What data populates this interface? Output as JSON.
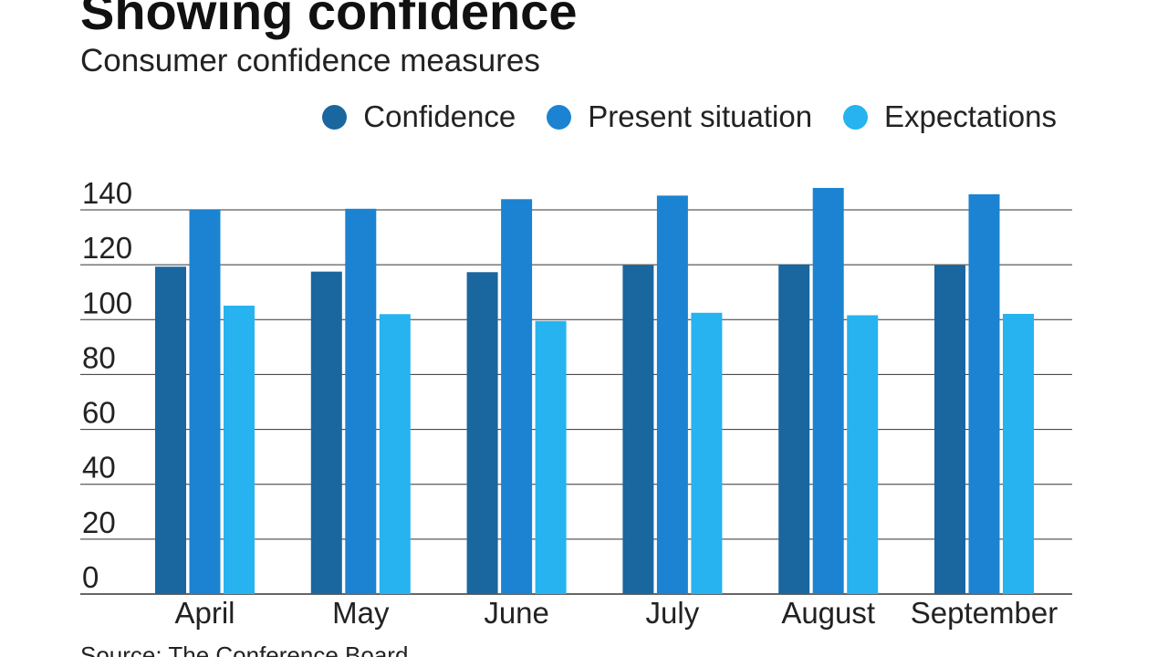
{
  "header": {
    "title": "Showing confidence",
    "subtitle": "Consumer confidence measures"
  },
  "footer": {
    "source": "Source: The Conference Board"
  },
  "colors": {
    "confidence": "#1a669f",
    "present_situation": "#1b83d2",
    "expectations": "#26b3ef",
    "gridline": "#333333"
  },
  "chart_data": {
    "type": "bar",
    "title": "Showing confidence",
    "subtitle": "Consumer confidence measures",
    "categories": [
      "April",
      "May",
      "June",
      "July",
      "August",
      "September"
    ],
    "series": [
      {
        "name": "Confidence",
        "values": [
          119.3,
          117.5,
          117.3,
          119.8,
          120.1,
          119.8
        ]
      },
      {
        "name": "Present situation",
        "values": [
          140.0,
          140.4,
          143.9,
          145.2,
          148.0,
          145.7
        ]
      },
      {
        "name": "Expectations",
        "values": [
          105.1,
          102.0,
          99.5,
          102.5,
          101.6,
          102.1
        ]
      }
    ],
    "yticks": [
      "0",
      "20",
      "40",
      "60",
      "80",
      "100",
      "120",
      "140"
    ],
    "ylim": [
      0,
      140
    ],
    "xlabel": "",
    "ylabel": "",
    "grid": true,
    "legend": "top-right"
  }
}
